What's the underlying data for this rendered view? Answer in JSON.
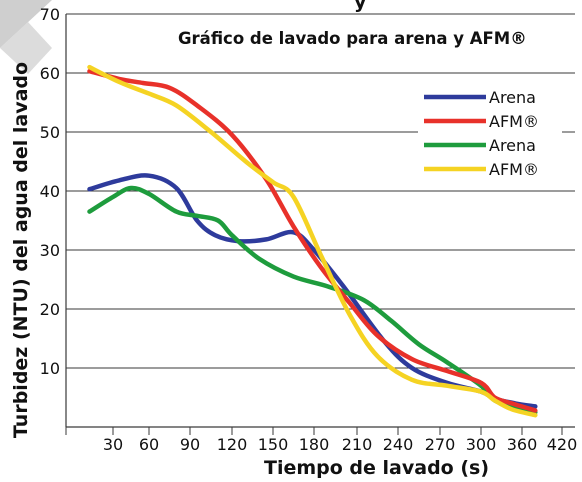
{
  "header": {
    "fragment_text": "y"
  },
  "chart_data": {
    "type": "line",
    "title": "Gráfico de lavado para arena y AFM®",
    "xlabel": "Tiempo de lavado (s)",
    "ylabel": "Turbidez (NTU) del agua del lavado",
    "xlim": [
      0,
      420
    ],
    "ylim": [
      0,
      70
    ],
    "x_ticks": [
      30,
      60,
      90,
      120,
      150,
      180,
      210,
      240,
      270,
      300,
      360,
      420
    ],
    "y_ticks": [
      10,
      20,
      30,
      40,
      50,
      60,
      70
    ],
    "grid": {
      "horizontal": true,
      "vertical": false
    },
    "legend_position": "top-right",
    "series": [
      {
        "name": "Arena",
        "color": "#2e3b9c",
        "points": [
          [
            15,
            40.3
          ],
          [
            35,
            41.8
          ],
          [
            60,
            42.6
          ],
          [
            80,
            40.5
          ],
          [
            95,
            35
          ],
          [
            108,
            32.5
          ],
          [
            125,
            31.5
          ],
          [
            145,
            31.8
          ],
          [
            165,
            33
          ],
          [
            180,
            30
          ],
          [
            200,
            24
          ],
          [
            230,
            14.5
          ],
          [
            250,
            10
          ],
          [
            275,
            7.5
          ],
          [
            300,
            6
          ],
          [
            320,
            4.8
          ],
          [
            350,
            4
          ],
          [
            380,
            3.5
          ]
        ]
      },
      {
        "name": "AFM®",
        "color": "#e8312a",
        "points": [
          [
            15,
            60.3
          ],
          [
            35,
            59
          ],
          [
            55,
            58.3
          ],
          [
            75,
            57.5
          ],
          [
            95,
            54.5
          ],
          [
            120,
            49.5
          ],
          [
            145,
            42
          ],
          [
            165,
            34
          ],
          [
            185,
            27
          ],
          [
            205,
            21
          ],
          [
            225,
            15.5
          ],
          [
            250,
            11.5
          ],
          [
            275,
            9.5
          ],
          [
            300,
            7.5
          ],
          [
            320,
            5
          ],
          [
            345,
            4
          ],
          [
            380,
            2.8
          ]
        ]
      },
      {
        "name": "Arena",
        "color": "#1e9c3d",
        "points": [
          [
            15,
            36.5
          ],
          [
            30,
            39
          ],
          [
            45,
            40.5
          ],
          [
            60,
            39.5
          ],
          [
            80,
            36.5
          ],
          [
            95,
            35.8
          ],
          [
            110,
            35
          ],
          [
            120,
            32.5
          ],
          [
            140,
            28.5
          ],
          [
            165,
            25.5
          ],
          [
            190,
            23.8
          ],
          [
            215,
            21.5
          ],
          [
            235,
            18
          ],
          [
            255,
            14
          ],
          [
            275,
            11
          ],
          [
            300,
            7
          ],
          [
            320,
            4.5
          ],
          [
            350,
            3.5
          ],
          [
            380,
            2.5
          ]
        ]
      },
      {
        "name": "AFM®",
        "color": "#f5d323",
        "points": [
          [
            15,
            61
          ],
          [
            35,
            58.5
          ],
          [
            60,
            56.5
          ],
          [
            80,
            54.5
          ],
          [
            105,
            50
          ],
          [
            130,
            45
          ],
          [
            150,
            41.5
          ],
          [
            165,
            39
          ],
          [
            185,
            29
          ],
          [
            205,
            19
          ],
          [
            225,
            12
          ],
          [
            250,
            8
          ],
          [
            275,
            7
          ],
          [
            300,
            6
          ],
          [
            320,
            4.5
          ],
          [
            345,
            3
          ],
          [
            380,
            2
          ]
        ]
      }
    ]
  }
}
